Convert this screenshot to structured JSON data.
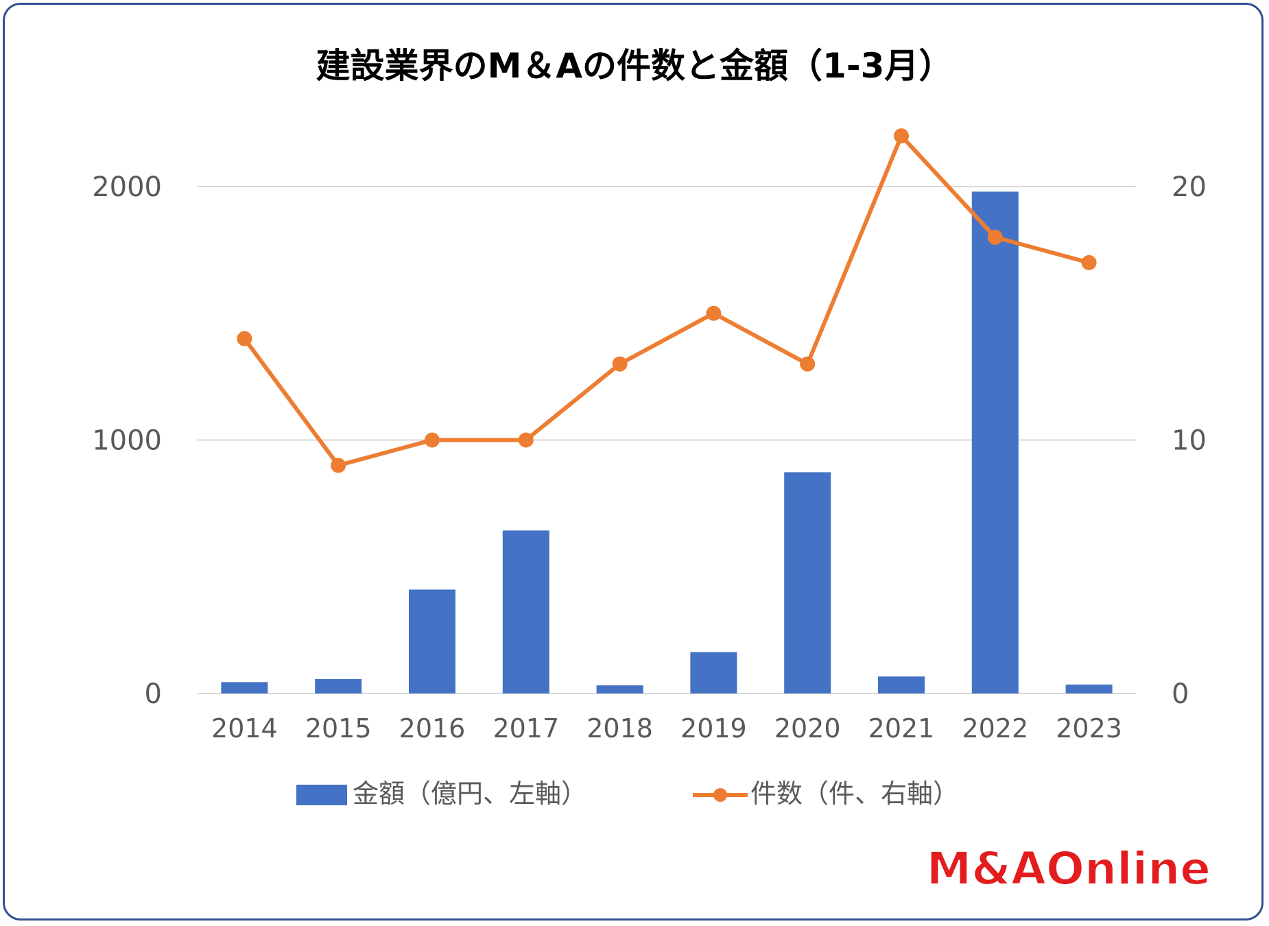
{
  "chart_data": {
    "type": "bar+line",
    "title": "建設業界のM＆Aの件数と金額（1-3月）",
    "categories": [
      "2014",
      "2015",
      "2016",
      "2017",
      "2018",
      "2019",
      "2020",
      "2021",
      "2022",
      "2023"
    ],
    "series": [
      {
        "name": "金額（億円、左軸）",
        "type": "bar",
        "axis": "left",
        "color": "#4472c4",
        "values": [
          45,
          57,
          410,
          643,
          32,
          163,
          873,
          67,
          1980,
          35
        ]
      },
      {
        "name": "件数（件、右軸）",
        "type": "line",
        "axis": "right",
        "color": "#ed7d31",
        "values": [
          14,
          9,
          10,
          10,
          13,
          15,
          13,
          22,
          18,
          17
        ]
      }
    ],
    "y_left": {
      "min": 0,
      "max": 2000,
      "ticks": [
        "0",
        "1000",
        "2000"
      ]
    },
    "y_right": {
      "min": 0,
      "max": 25,
      "ticks": [
        "0",
        "10",
        "20"
      ]
    },
    "grid": true,
    "legend_position": "bottom"
  },
  "logo": {
    "text": "M&AOnline"
  }
}
